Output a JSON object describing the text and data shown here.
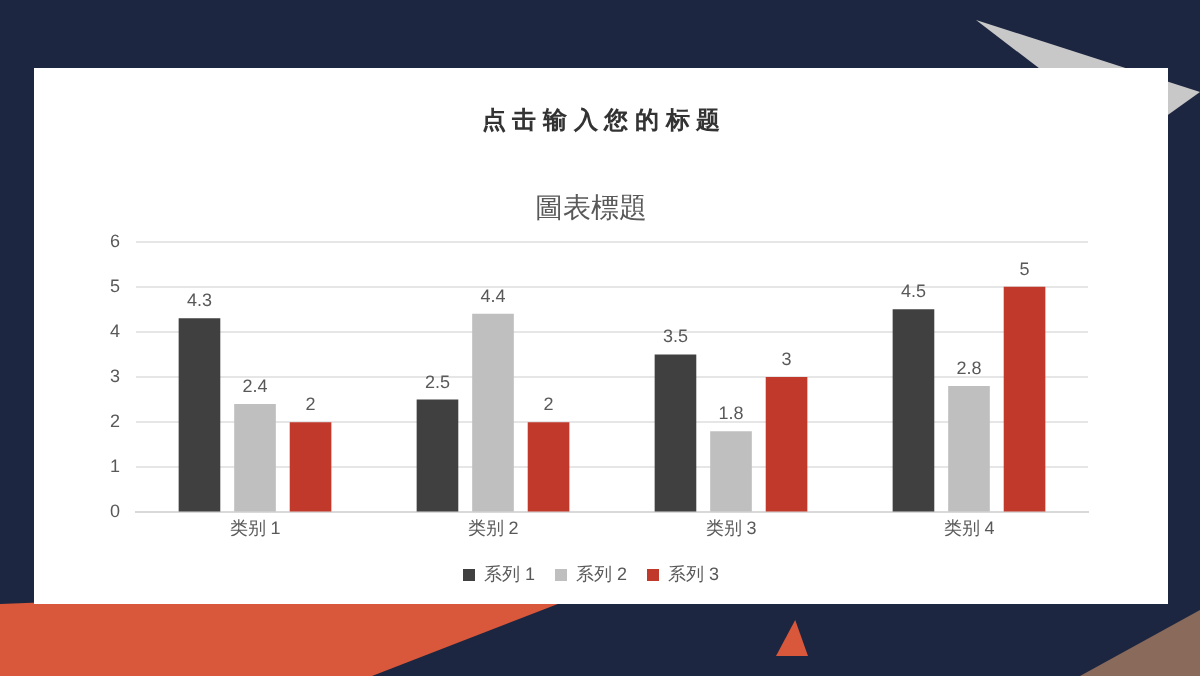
{
  "chart_data": {
    "type": "bar",
    "title": "点 击 输 入 您 的 标 题",
    "subtitle": "圖表標題",
    "categories": [
      "类别 1",
      "类别 2",
      "类别 3",
      "类别 4"
    ],
    "series": [
      {
        "name": "系列 1",
        "color": "#404040",
        "values": [
          4.3,
          2.5,
          3.5,
          4.5
        ]
      },
      {
        "name": "系列 2",
        "color": "#bfbfbf",
        "values": [
          2.4,
          4.4,
          1.8,
          2.8
        ]
      },
      {
        "name": "系列 3",
        "color": "#c0392b",
        "values": [
          2,
          2,
          3,
          5
        ]
      }
    ],
    "ylim": [
      0,
      6
    ],
    "yticks": [
      0,
      1,
      2,
      3,
      4,
      5,
      6
    ],
    "grid": "y",
    "legend": "bottom",
    "data_labels": true
  }
}
